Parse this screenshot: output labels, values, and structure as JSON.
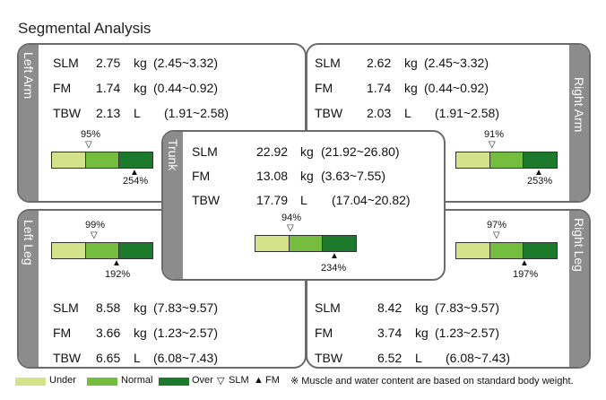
{
  "title": "Segmental Analysis",
  "colors": {
    "under": "#d4e28a",
    "normal": "#75bd3e",
    "over": "#1d7a2d",
    "tab": "#8c8c8c"
  },
  "segments": {
    "left_arm": {
      "label": "Left Arm",
      "rows": [
        {
          "name": "SLM",
          "value": "2.75",
          "unit": "kg",
          "range": "(2.45~3.32)"
        },
        {
          "name": "FM",
          "value": "1.74",
          "unit": "kg",
          "range": "(0.44~0.92)"
        },
        {
          "name": "TBW",
          "value": "2.13",
          "unit": "L",
          "range": "(1.91~2.58)"
        }
      ],
      "slm_pct": "95%",
      "fm_pct": "254%"
    },
    "right_arm": {
      "label": "Right Arm",
      "rows": [
        {
          "name": "SLM",
          "value": "2.62",
          "unit": "kg",
          "range": "(2.45~3.32)"
        },
        {
          "name": "FM",
          "value": "1.74",
          "unit": "kg",
          "range": "(0.44~0.92)"
        },
        {
          "name": "TBW",
          "value": "2.03",
          "unit": "L",
          "range": "(1.91~2.58)"
        }
      ],
      "slm_pct": "91%",
      "fm_pct": "253%"
    },
    "trunk": {
      "label": "Trunk",
      "rows": [
        {
          "name": "SLM",
          "value": "22.92",
          "unit": "kg",
          "range": "(21.92~26.80)"
        },
        {
          "name": "FM",
          "value": "13.08",
          "unit": "kg",
          "range": "(3.63~7.55)"
        },
        {
          "name": "TBW",
          "value": "17.79",
          "unit": "L",
          "range": "(17.04~20.82)"
        }
      ],
      "slm_pct": "94%",
      "fm_pct": "234%"
    },
    "left_leg": {
      "label": "Left Leg",
      "rows": [
        {
          "name": "SLM",
          "value": "8.58",
          "unit": "kg",
          "range": "(7.83~9.57)"
        },
        {
          "name": "FM",
          "value": "3.66",
          "unit": "kg",
          "range": "(1.23~2.57)"
        },
        {
          "name": "TBW",
          "value": "6.65",
          "unit": "L",
          "range": "(6.08~7.43)"
        }
      ],
      "slm_pct": "99%",
      "fm_pct": "192%"
    },
    "right_leg": {
      "label": "Right Leg",
      "rows": [
        {
          "name": "SLM",
          "value": "8.42",
          "unit": "kg",
          "range": "(7.83~9.57)"
        },
        {
          "name": "FM",
          "value": "3.74",
          "unit": "kg",
          "range": "(1.23~2.57)"
        },
        {
          "name": "TBW",
          "value": "6.52",
          "unit": "L",
          "range": "(6.08~7.43)"
        }
      ],
      "slm_pct": "97%",
      "fm_pct": "197%"
    }
  },
  "legend": {
    "under": "Under",
    "normal": "Normal",
    "over": "Over",
    "slm": "SLM",
    "fm": "FM",
    "note": "※ Muscle and water content are based on standard body weight."
  }
}
